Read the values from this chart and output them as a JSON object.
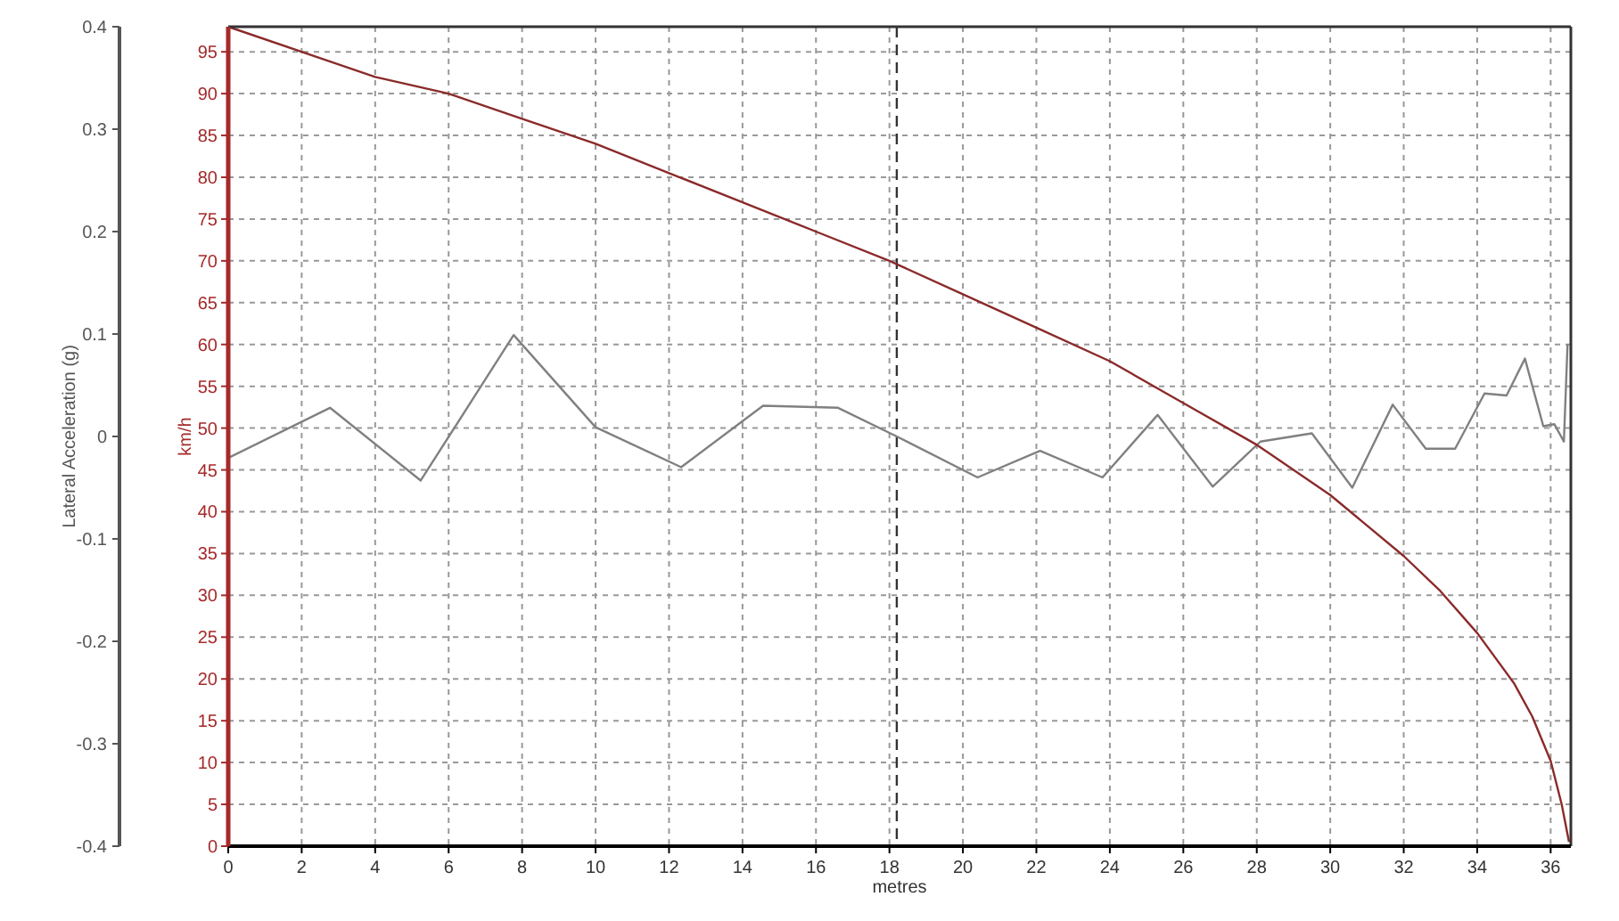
{
  "chart_data": {
    "type": "line",
    "xlabel": "metres",
    "ylabel": "Lateral Acceleration (g)",
    "y2label": "km/h",
    "xlim": [
      0,
      36.55
    ],
    "xticks": [
      0,
      2,
      4,
      6,
      8,
      10,
      12,
      14,
      16,
      18,
      20,
      22,
      24,
      26,
      28,
      30,
      32,
      34,
      36
    ],
    "ylim": [
      -0.4,
      0.4
    ],
    "yticks": [
      -0.4,
      -0.3,
      -0.2,
      -0.1,
      0,
      0.1,
      0.2,
      0.3,
      0.4
    ],
    "y2lim": [
      0,
      98
    ],
    "y2ticks": [
      0,
      5,
      10,
      15,
      20,
      25,
      30,
      35,
      40,
      45,
      50,
      55,
      60,
      65,
      70,
      75,
      80,
      85,
      90,
      95
    ],
    "grid": true,
    "marker": "none",
    "ref_lines": [
      {
        "axis": "x",
        "value": 18.2,
        "color": "#333333",
        "line_style": "dashed"
      }
    ],
    "series": [
      {
        "color": "#808080",
        "x": [
          0,
          2.77,
          5.24,
          7.77,
          10.0,
          12.33,
          14.56,
          16.6,
          18.2,
          20.4,
          22.1,
          23.8,
          25.3,
          26.8,
          28.1,
          29.5,
          30.6,
          31.7,
          32.6,
          33.4,
          34.2,
          34.8,
          35.3,
          35.8,
          36.1,
          36.36,
          36.46
        ],
        "values": [
          -0.021,
          0.028,
          -0.043,
          0.099,
          0.009,
          -0.03,
          0.03,
          0.028,
          0.0,
          -0.04,
          -0.014,
          -0.04,
          0.021,
          -0.049,
          -0.005,
          0.003,
          -0.05,
          0.031,
          -0.012,
          -0.012,
          0.042,
          0.04,
          0.076,
          0.01,
          0.012,
          -0.005,
          0.09
        ]
      },
      {
        "color": "#8b2a2a",
        "axis": "y2",
        "x": [
          0,
          2.67,
          4,
          6,
          8,
          10,
          12,
          14,
          16,
          18,
          20,
          22,
          24,
          26,
          28,
          30,
          32,
          33,
          34,
          35,
          35.5,
          36,
          36.3,
          36.5
        ],
        "values": [
          98,
          94,
          92,
          90,
          87,
          84,
          80.5,
          77,
          73.5,
          70,
          66,
          62,
          58,
          53,
          48,
          42,
          34.7,
          30.5,
          25.5,
          19.5,
          15.5,
          10.2,
          5,
          0.5
        ]
      }
    ]
  }
}
